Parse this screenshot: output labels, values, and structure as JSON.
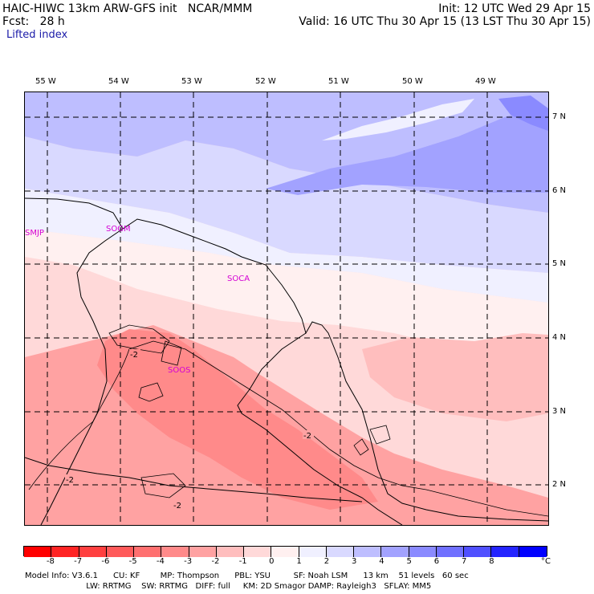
{
  "header": {
    "model": "HAIC-HIWC 13km ARW-GFS init   NCAR/MMM",
    "init": "Init: 12 UTC Wed 29 Apr 15",
    "fcst": "Fcst:   28 h",
    "valid": "Valid: 16 UTC Thu 30 Apr 15 (13 LST Thu 30 Apr 15)",
    "field": "Lifted index"
  },
  "lon_labels": [
    "55 W",
    "54 W",
    "53 W",
    "52 W",
    "51 W",
    "50 W",
    "49 W"
  ],
  "lat_labels": [
    "7 N",
    "6 N",
    "5 N",
    "4 N",
    "3 N",
    "2 N"
  ],
  "stations": [
    "SMJP",
    "SOGM",
    "SOCA",
    "SOOS"
  ],
  "contour_labels": [
    "-2",
    "-2",
    "-2",
    "-2"
  ],
  "colorbar": {
    "colors": [
      "#ff0000",
      "#ff2424",
      "#ff4040",
      "#ff5a5a",
      "#ff7070",
      "#ff8a8a",
      "#ffa2a2",
      "#ffbebe",
      "#ffd9d9",
      "#fff0f0",
      "#f0f0ff",
      "#d9d9ff",
      "#bebeff",
      "#a2a2ff",
      "#8a8aff",
      "#7070ff",
      "#5050ff",
      "#2424ff",
      "#0000ff"
    ],
    "ticks": [
      "-8",
      "-7",
      "-6",
      "-5",
      "-4",
      "-3",
      "-2",
      "-1",
      "0",
      "1",
      "2",
      "3",
      "4",
      "5",
      "6",
      "7",
      "8"
    ],
    "unit": "°C"
  },
  "model_info": {
    "line1": "Model Info: V3.6.1      CU: KF        MP: Thompson      PBL: YSU         SF: Noah LSM      13 km    51 levels   60 sec",
    "line2": "                        LW: RRTMG    SW: RRTMG   DIFF: full     KM: 2D Smagor DAMP: Rayleigh3   SFLAY: MM5"
  }
}
